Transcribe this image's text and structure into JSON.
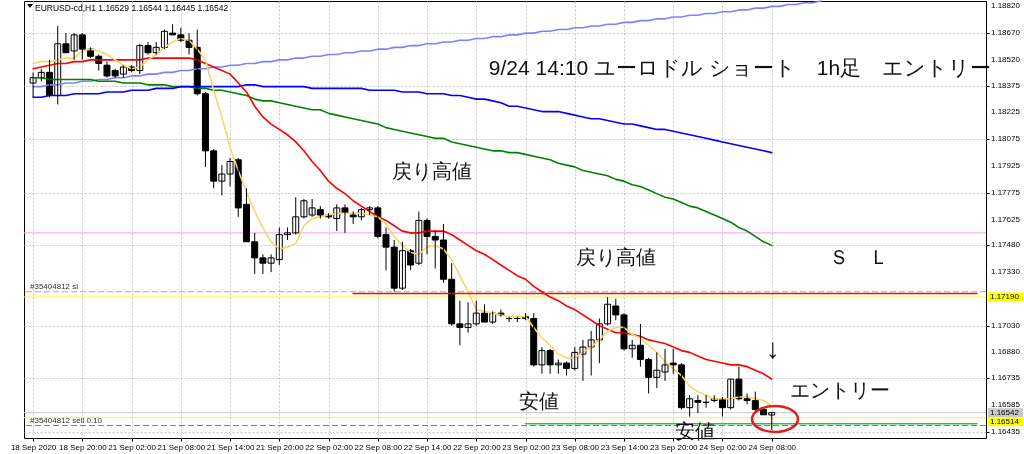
{
  "chart_data": {
    "type": "candlestick",
    "title": "EURUSD-cd,H1  1.16529 1.16544 1.16445 1.16542",
    "categories": [
      "18 Sep 2020",
      null,
      null,
      null,
      null,
      null,
      "18 Sep 20:00",
      null,
      null,
      null,
      null,
      null,
      "21 Sep 02:00",
      null,
      null,
      null,
      null,
      null,
      "21 Sep 08:00",
      null,
      null,
      null,
      null,
      null,
      "21 Sep 14:00",
      null,
      null,
      null,
      null,
      null,
      "21 Sep 20:00",
      null,
      null,
      null,
      null,
      null,
      "22 Sep 02:00",
      null,
      null,
      null,
      null,
      null,
      "22 Sep 08:00",
      null,
      null,
      null,
      null,
      null,
      "22 Sep 14:00",
      null,
      null,
      null,
      null,
      null,
      "22 Sep 20:00",
      null,
      null,
      null,
      null,
      null,
      "23 Sep 02:00",
      null,
      null,
      null,
      null,
      null,
      "23 Sep 08:00",
      null,
      null,
      null,
      null,
      null,
      "23 Sep 14:00",
      null,
      null,
      null,
      null,
      null,
      "23 Sep 20:00",
      null,
      null,
      null,
      null,
      null,
      "24 Sep 02:00",
      null,
      null,
      null,
      null,
      null,
      "24 Sep 08:00",
      null,
      null,
      null,
      null,
      null,
      null,
      null,
      null,
      null,
      null,
      null,
      null,
      null,
      null,
      null,
      null,
      null,
      null,
      null,
      null,
      null,
      null,
      null,
      null,
      null
    ],
    "ohlc": [
      [
        1.1839,
        1.1845,
        1.1831,
        1.1842
      ],
      [
        1.1842,
        1.1847,
        1.184,
        1.1845
      ],
      [
        1.1845,
        1.1852,
        1.1831,
        1.1832
      ],
      [
        1.1832,
        1.1871,
        1.1827,
        1.1861
      ],
      [
        1.1861,
        1.1867,
        1.1856,
        1.1856
      ],
      [
        1.1857,
        1.1867,
        1.1852,
        1.1866
      ],
      [
        1.1866,
        1.1867,
        1.1852,
        1.1858
      ],
      [
        1.1858,
        1.1859,
        1.1853,
        1.1854
      ],
      [
        1.1854,
        1.1855,
        1.1846,
        1.185
      ],
      [
        1.1849,
        1.1851,
        1.1842,
        1.1843
      ],
      [
        1.1846,
        1.1847,
        1.1842,
        1.1843
      ],
      [
        1.1844,
        1.1849,
        1.1842,
        1.1848
      ],
      [
        1.1848,
        1.1849,
        1.1845,
        1.1846
      ],
      [
        1.1846,
        1.1861,
        1.1844,
        1.186
      ],
      [
        1.186,
        1.1862,
        1.1855,
        1.1856
      ],
      [
        1.1856,
        1.1862,
        1.1855,
        1.1859
      ],
      [
        1.1859,
        1.1869,
        1.1858,
        1.1868
      ],
      [
        1.1867,
        1.1872,
        1.1866,
        1.1866
      ],
      [
        1.1866,
        1.187,
        1.1862,
        1.1863
      ],
      [
        1.1863,
        1.1867,
        1.1855,
        1.1859
      ],
      [
        1.1859,
        1.1869,
        1.1832,
        1.1833
      ],
      [
        1.1833,
        1.1834,
        1.1792,
        1.1801
      ],
      [
        1.1801,
        1.1802,
        1.178,
        1.1784
      ],
      [
        1.1784,
        1.1793,
        1.1776,
        1.1788
      ],
      [
        1.1788,
        1.1797,
        1.1781,
        1.1795
      ],
      [
        1.1796,
        1.1797,
        1.1764,
        1.1769
      ],
      [
        1.1771,
        1.178,
        1.175,
        1.175
      ],
      [
        1.175,
        1.1755,
        1.1732,
        1.1741
      ],
      [
        1.1741,
        1.1743,
        1.1732,
        1.1738
      ],
      [
        1.1738,
        1.1743,
        1.1733,
        1.1741
      ],
      [
        1.174,
        1.1758,
        1.1737,
        1.1754
      ],
      [
        1.1754,
        1.1758,
        1.1751,
        1.1755
      ],
      [
        1.1755,
        1.1775,
        1.1754,
        1.1764
      ],
      [
        1.1764,
        1.1774,
        1.1763,
        1.1773
      ],
      [
        1.1765,
        1.1774,
        1.1764,
        1.1769
      ],
      [
        1.1768,
        1.177,
        1.1763,
        1.1765
      ],
      [
        1.1765,
        1.1766,
        1.1763,
        1.1764
      ],
      [
        1.1763,
        1.1771,
        1.1756,
        1.1769
      ],
      [
        1.1769,
        1.1771,
        1.1755,
        1.1766
      ],
      [
        1.1765,
        1.1767,
        1.176,
        1.1764
      ],
      [
        1.1764,
        1.1769,
        1.1762,
        1.1768
      ],
      [
        1.1768,
        1.177,
        1.1765,
        1.1769
      ],
      [
        1.1769,
        1.177,
        1.1752,
        1.1753
      ],
      [
        1.1754,
        1.1758,
        1.1734,
        1.1747
      ],
      [
        1.1747,
        1.1751,
        1.1722,
        1.1724
      ],
      [
        1.1724,
        1.175,
        1.1723,
        1.1745
      ],
      [
        1.1745,
        1.1746,
        1.1734,
        1.1737
      ],
      [
        1.1738,
        1.1767,
        1.1737,
        1.1762
      ],
      [
        1.1762,
        1.1763,
        1.1743,
        1.1753
      ],
      [
        1.1753,
        1.1756,
        1.1735,
        1.1751
      ],
      [
        1.1751,
        1.176,
        1.1727,
        1.1729
      ],
      [
        1.1729,
        1.1738,
        1.1703,
        1.1704
      ],
      [
        1.1704,
        1.1717,
        1.1692,
        1.1702
      ],
      [
        1.1702,
        1.1716,
        1.1699,
        1.1704
      ],
      [
        1.1704,
        1.1717,
        1.1703,
        1.171
      ],
      [
        1.171,
        1.1715,
        1.1705,
        1.1705
      ],
      [
        1.1705,
        1.1711,
        1.1704,
        1.171
      ],
      [
        1.171,
        1.1712,
        1.1708,
        1.1709
      ],
      [
        1.1707,
        1.1708,
        1.1705,
        1.1707
      ],
      [
        1.1707,
        1.1708,
        1.1705,
        1.1707
      ],
      [
        1.1708,
        1.171,
        1.1706,
        1.1707
      ],
      [
        1.1707,
        1.171,
        1.168,
        1.1681
      ],
      [
        1.1681,
        1.1691,
        1.1676,
        1.1689
      ],
      [
        1.1689,
        1.169,
        1.1676,
        1.1681
      ],
      [
        1.1681,
        1.1684,
        1.1676,
        1.1682
      ],
      [
        1.1682,
        1.1683,
        1.1675,
        1.1679
      ],
      [
        1.1679,
        1.1691,
        1.1678,
        1.1688
      ],
      [
        1.1687,
        1.1695,
        1.1672,
        1.1691
      ],
      [
        1.1691,
        1.17,
        1.1675,
        1.1695
      ],
      [
        1.1695,
        1.1707,
        1.1682,
        1.1704
      ],
      [
        1.1704,
        1.1719,
        1.1703,
        1.1715
      ],
      [
        1.1714,
        1.1718,
        1.1706,
        1.1709
      ],
      [
        1.1709,
        1.171,
        1.1689,
        1.169
      ],
      [
        1.169,
        1.1695,
        1.1685,
        1.1692
      ],
      [
        1.1692,
        1.1704,
        1.168,
        1.1684
      ],
      [
        1.1684,
        1.1685,
        1.1665,
        1.1674
      ],
      [
        1.1674,
        1.1688,
        1.1668,
        1.1678
      ],
      [
        1.1677,
        1.169,
        1.1672,
        1.1681
      ],
      [
        1.1682,
        1.169,
        1.1676,
        1.1681
      ],
      [
        1.1681,
        1.1682,
        1.1656,
        1.1657
      ],
      [
        1.1657,
        1.1664,
        1.1652,
        1.1662
      ],
      [
        1.1661,
        1.1664,
        1.1654,
        1.166
      ],
      [
        1.166,
        1.1664,
        1.1657,
        1.166
      ],
      [
        1.1661,
        1.1664,
        1.166,
        1.1662
      ],
      [
        1.1662,
        1.1663,
        1.1652,
        1.1657
      ],
      [
        1.1657,
        1.1673,
        1.1656,
        1.1673
      ],
      [
        1.1673,
        1.168,
        1.1661,
        1.1662
      ],
      [
        1.1662,
        1.1665,
        1.1659,
        1.1661
      ],
      [
        1.1661,
        1.1666,
        1.1655,
        1.1656
      ],
      [
        1.1656,
        1.1657,
        1.1653,
        1.1653
      ],
      [
        1.16529,
        1.16544,
        1.16445,
        1.16542
      ],
      null,
      null,
      null,
      null,
      null,
      null,
      null,
      null,
      null,
      null,
      null,
      null,
      null,
      null,
      null,
      null,
      null,
      null,
      null,
      null,
      null,
      null,
      null,
      null,
      null
    ],
    "series": [
      {
        "type": "line",
        "color": "#8080ff",
        "values": [
          1.1837,
          1.1837,
          1.1838,
          1.1838,
          1.1839,
          1.1839,
          1.184,
          1.184,
          1.1841,
          1.1841,
          1.1842,
          1.1842,
          1.1843,
          1.1843,
          1.1844,
          1.1844,
          1.1845,
          1.1845,
          1.1846,
          1.1846,
          1.1847,
          1.1847,
          1.1848,
          1.1848,
          1.1849,
          1.1849,
          1.185,
          1.185,
          1.1851,
          1.1851,
          1.1852,
          1.1852,
          1.1853,
          1.1853,
          1.1854,
          1.1854,
          1.1855,
          1.1855,
          1.1856,
          1.1856,
          1.1857,
          1.1857,
          1.1858,
          1.1858,
          1.1859,
          1.1859,
          1.186,
          1.186,
          1.1861,
          1.1861,
          1.1862,
          1.1862,
          1.1863,
          1.1863,
          1.1864,
          1.1864,
          1.1865,
          1.1865,
          1.1866,
          1.1866,
          1.1867,
          1.1867,
          1.1868,
          1.1868,
          1.1869,
          1.1869,
          1.187,
          1.187,
          1.1871,
          1.1871,
          1.1872,
          1.1872,
          1.1873,
          1.1873,
          1.1874,
          1.1874,
          1.1875,
          1.1875,
          1.1876,
          1.1876,
          1.1877,
          1.1877,
          1.1878,
          1.1878,
          1.1879,
          1.1879,
          1.188,
          1.188,
          1.1881,
          1.1881,
          1.1882,
          1.1882,
          1.1883,
          1.1883,
          1.1884,
          1.1884,
          1.1885,
          null,
          null,
          null,
          null,
          null,
          null,
          null,
          null,
          null,
          null,
          null,
          null,
          null,
          null,
          null,
          null,
          null,
          null,
          null
        ]
      },
      {
        "type": "line",
        "color": "#008000",
        "values": [
          1.1842,
          1.1842,
          1.1841,
          1.1841,
          1.1841,
          1.1841,
          1.1841,
          1.1841,
          1.184,
          1.184,
          1.184,
          1.1839,
          1.1839,
          1.1839,
          1.1838,
          1.1838,
          1.1838,
          1.1837,
          1.1837,
          1.1837,
          1.1836,
          1.1836,
          1.1835,
          1.1835,
          1.1834,
          1.1833,
          1.1832,
          1.183,
          1.1829,
          1.1829,
          1.1828,
          1.1827,
          1.1826,
          1.1825,
          1.1824,
          1.1824,
          1.1822,
          1.1821,
          1.182,
          1.1819,
          1.1818,
          1.1817,
          1.1816,
          1.1814,
          1.1813,
          1.1812,
          1.1811,
          1.181,
          1.1809,
          1.1808,
          1.1808,
          1.1806,
          1.1805,
          1.1804,
          1.1803,
          1.1802,
          1.1801,
          1.1801,
          1.18,
          1.18,
          1.1799,
          1.1798,
          1.1797,
          1.1796,
          1.1794,
          1.1793,
          1.1792,
          1.179,
          1.1789,
          1.1788,
          1.1787,
          1.1785,
          1.1784,
          1.1782,
          1.1781,
          1.1779,
          1.1777,
          1.1775,
          1.1774,
          1.1772,
          1.177,
          1.1769,
          1.1767,
          1.1765,
          1.1763,
          1.1761,
          1.1758,
          1.1756,
          1.1753,
          1.175,
          1.1748,
          null,
          null,
          null,
          null,
          null,
          null,
          null,
          null,
          null,
          null,
          null,
          null,
          null,
          null,
          null,
          null,
          null,
          null,
          null,
          null,
          null,
          null,
          null,
          null,
          null
        ]
      },
      {
        "type": "line",
        "color": "#0000ff",
        "values": [
          1.1831,
          1.1831,
          1.1832,
          1.1832,
          1.1832,
          1.1833,
          1.1833,
          1.1833,
          1.1833,
          1.1834,
          1.1834,
          1.1834,
          1.1835,
          1.1835,
          1.1835,
          1.1836,
          1.1836,
          1.1836,
          1.1837,
          1.1837,
          1.1837,
          1.1837,
          1.1837,
          1.1837,
          1.1837,
          1.1837,
          1.1838,
          1.1838,
          1.1837,
          1.1837,
          1.1837,
          1.1837,
          1.1837,
          1.1837,
          1.1836,
          1.1836,
          1.1836,
          1.1836,
          1.1836,
          1.1836,
          1.1836,
          1.1835,
          1.1835,
          1.1835,
          1.1835,
          1.1834,
          1.1834,
          1.1834,
          1.1833,
          1.1833,
          1.1833,
          1.1832,
          1.1832,
          1.1831,
          1.183,
          1.183,
          1.1829,
          1.1828,
          1.1826,
          1.1826,
          1.1825,
          1.1824,
          1.1823,
          1.1823,
          1.1823,
          1.1822,
          1.1821,
          1.182,
          1.1819,
          1.1819,
          1.1818,
          1.1817,
          1.1816,
          1.1816,
          1.1815,
          1.1814,
          1.1813,
          1.1813,
          1.1812,
          1.1811,
          1.181,
          1.1809,
          1.1808,
          1.1807,
          1.1806,
          1.1805,
          1.1804,
          1.1803,
          1.1802,
          1.1801,
          1.18,
          null,
          null,
          null,
          null,
          null,
          null,
          null,
          null,
          null,
          null,
          null,
          null,
          null,
          null,
          null,
          null,
          null,
          null,
          null,
          null,
          null,
          null,
          null,
          null,
          null
        ]
      },
      {
        "type": "line",
        "color": "#ff0000",
        "values": [
          1.1847,
          1.1848,
          1.1849,
          1.185,
          1.185,
          1.1851,
          1.1851,
          1.1852,
          1.1852,
          1.1852,
          1.1852,
          1.1852,
          1.1852,
          1.1852,
          1.1853,
          1.1853,
          1.1853,
          1.1853,
          1.1853,
          1.1853,
          1.1852,
          1.185,
          1.1848,
          1.1846,
          1.1844,
          1.1839,
          1.1834,
          1.1826,
          1.182,
          1.1816,
          1.1813,
          1.181,
          1.1806,
          1.1801,
          1.1795,
          1.179,
          1.1784,
          1.178,
          1.1777,
          1.1773,
          1.177,
          1.1767,
          1.1764,
          1.1762,
          1.1759,
          1.1756,
          1.1755,
          1.1755,
          1.1756,
          1.1756,
          1.1756,
          1.1754,
          1.1751,
          1.1748,
          1.1745,
          1.1743,
          1.174,
          1.1737,
          1.1734,
          1.1731,
          1.1729,
          1.1725,
          1.1722,
          1.1719,
          1.1717,
          1.1714,
          1.1712,
          1.1709,
          1.1706,
          1.1703,
          1.1701,
          1.1699,
          1.1699,
          1.1698,
          1.1697,
          1.1695,
          1.1694,
          1.1693,
          1.1691,
          1.1689,
          1.1688,
          1.1686,
          1.1684,
          1.1683,
          1.1682,
          1.1681,
          1.1681,
          1.168,
          1.1678,
          1.1676,
          1.1673,
          null,
          null,
          null,
          null,
          null,
          null,
          null,
          null,
          null,
          null,
          null,
          null,
          null,
          null,
          null,
          null,
          null,
          null,
          null,
          null,
          null,
          null,
          null,
          null,
          null
        ]
      },
      {
        "type": "line",
        "color": "#f5d76e",
        "values": [
          1.185,
          1.1851,
          1.1851,
          1.1852,
          1.1853,
          1.1853,
          1.1857,
          1.1858,
          1.1857,
          1.1855,
          1.1852,
          1.1849,
          1.1847,
          1.1848,
          1.1852,
          1.1855,
          1.1859,
          1.1862,
          1.1864,
          1.1863,
          1.1858,
          1.1852,
          1.1835,
          1.182,
          1.1803,
          1.179,
          1.1778,
          1.1767,
          1.1758,
          1.175,
          1.1746,
          1.1747,
          1.1749,
          1.1759,
          1.1763,
          1.1764,
          1.1765,
          1.1766,
          1.1766,
          1.1766,
          1.1766,
          1.1765,
          1.1764,
          1.176,
          1.1753,
          1.1748,
          1.1744,
          1.1743,
          1.1747,
          1.1748,
          1.1746,
          1.174,
          1.1731,
          1.1722,
          1.1712,
          1.1711,
          1.171,
          1.1709,
          1.1708,
          1.1708,
          1.1708,
          1.1702,
          1.1696,
          1.1692,
          1.1687,
          1.1685,
          1.1685,
          1.1688,
          1.1691,
          1.1695,
          1.17,
          1.1702,
          1.1702,
          1.1698,
          1.1696,
          1.1692,
          1.1688,
          1.1683,
          1.1679,
          1.1675,
          1.1669,
          1.1666,
          1.1664,
          1.1662,
          1.1662,
          1.1662,
          1.1663,
          1.1663,
          1.1662,
          1.1661,
          1.1658,
          null,
          null,
          null,
          null,
          null,
          null,
          null,
          null,
          null,
          null,
          null,
          null,
          null,
          null,
          null,
          null,
          null,
          null,
          null,
          null,
          null,
          null,
          null,
          null,
          null
        ]
      },
      {
        "type": "line",
        "color": "#e8101a",
        "values": [
          null,
          null,
          null,
          null,
          null,
          null,
          null,
          null,
          null,
          null,
          null,
          null,
          null,
          null,
          null,
          null,
          null,
          null,
          null,
          null,
          null,
          null,
          null,
          null,
          null,
          null,
          null,
          null,
          null,
          null,
          null,
          null,
          null,
          null,
          null,
          null,
          null,
          null,
          null,
          1.1721,
          1.1721,
          1.1721,
          1.1721,
          1.1721,
          1.1721,
          1.1721,
          1.1721,
          1.1721,
          1.1721,
          1.1721,
          1.1721,
          1.1721,
          1.1721,
          1.1721,
          1.1721,
          1.1721,
          1.1721,
          1.1721,
          1.1721,
          1.1721,
          1.1721,
          1.1721,
          1.1721,
          1.1721,
          1.1721,
          1.1721,
          1.1721,
          1.1721,
          1.1721,
          1.1721,
          1.1721,
          1.1721,
          1.1721,
          1.1721,
          1.1721,
          1.1721,
          1.1721,
          1.1721,
          1.1721,
          1.1721,
          1.1721,
          1.1721,
          1.1721,
          1.1721,
          1.1721,
          1.1721,
          1.1721,
          1.1721,
          1.1721,
          1.1721,
          1.1721,
          1.1721,
          1.1721,
          1.1721,
          1.1721,
          1.1721,
          1.1721,
          1.1721,
          1.1721,
          1.1721,
          1.1721,
          1.1721,
          1.1721,
          1.1721,
          1.1721,
          1.1721,
          1.1721,
          1.1721,
          1.1721,
          1.1721,
          1.1721,
          1.1721,
          1.1721,
          1.1721,
          1.1721,
          1.1721
        ]
      },
      {
        "type": "line",
        "color": "#22c93a",
        "values": [
          null,
          null,
          null,
          null,
          null,
          null,
          null,
          null,
          null,
          null,
          null,
          null,
          null,
          null,
          null,
          null,
          null,
          null,
          null,
          null,
          null,
          null,
          null,
          null,
          null,
          null,
          null,
          null,
          null,
          null,
          null,
          null,
          null,
          null,
          null,
          null,
          null,
          null,
          null,
          null,
          null,
          null,
          null,
          null,
          null,
          null,
          null,
          null,
          null,
          null,
          null,
          null,
          null,
          null,
          null,
          null,
          null,
          null,
          null,
          null,
          1.1648,
          1.1648,
          1.1648,
          1.1648,
          1.1648,
          1.1648,
          1.1648,
          1.1648,
          1.1648,
          1.1648,
          1.1648,
          1.1648,
          1.1648,
          1.1648,
          1.1648,
          1.1648,
          1.1648,
          1.1648,
          1.1648,
          1.1648,
          1.1648,
          1.1648,
          1.1648,
          1.1648,
          1.1648,
          1.1648,
          1.1648,
          1.1648,
          1.1648,
          1.1648,
          1.1648,
          1.1648,
          1.1648,
          1.1648,
          1.1648,
          1.1648,
          1.1648,
          1.1648,
          1.1648,
          1.1648,
          1.1648,
          1.1648,
          1.1648,
          1.1648,
          1.1648,
          1.1648,
          1.1648,
          1.1648,
          1.1648,
          1.1648,
          1.1648,
          1.1648,
          1.1648,
          1.1648,
          1.1648,
          1.1648
        ]
      }
    ],
    "ylim": [
      1.164,
      1.1885
    ],
    "yticks": [
      {
        "value": 1.1882,
        "label": "1.18820"
      },
      {
        "value": 1.1867,
        "label": "1.18670"
      },
      {
        "value": 1.1852,
        "label": "1.18520"
      },
      1.18375,
      1.18225,
      1.18075,
      1.17925,
      1.17775,
      1.17625,
      {
        "value": 1.1748,
        "label": "1.17480"
      },
      {
        "value": 1.1733,
        "label": "1.17330"
      },
      {
        "value": 1.1703,
        "label": "1.17030"
      },
      {
        "value": 1.1688,
        "label": "1.16880"
      },
      1.16735,
      1.16585,
      1.16435
    ],
    "grid": true,
    "ref_lines": [
      {
        "axis": "y",
        "value": 1.1755,
        "color": "#ff99ff"
      },
      {
        "axis": "y",
        "value": 1.1722,
        "label": "#35404812 sl",
        "color": "#ff8c69",
        "line_style": "dashed"
      },
      {
        "axis": "y",
        "value": 1.1719,
        "label": "1.17190",
        "color": "#ffff00"
      },
      {
        "axis": "y",
        "value": 1.16542,
        "label": "1.16542",
        "color": "#c8c8c8"
      },
      {
        "axis": "y",
        "value": 1.16514,
        "label": "1.16514",
        "color": "#ffff00"
      },
      {
        "axis": "y",
        "value": 1.1647,
        "label": "#35404812 sell 0.10",
        "color": "#32b432",
        "line_style": "dashed"
      }
    ],
    "annotations": [
      "9/24 14:10 ユーロドル ショート　1h足　エントリー",
      "戻り高値",
      "戻り高値",
      "Ｓ　Ｌ",
      "↓",
      "エントリー",
      "安値",
      "安値"
    ]
  }
}
